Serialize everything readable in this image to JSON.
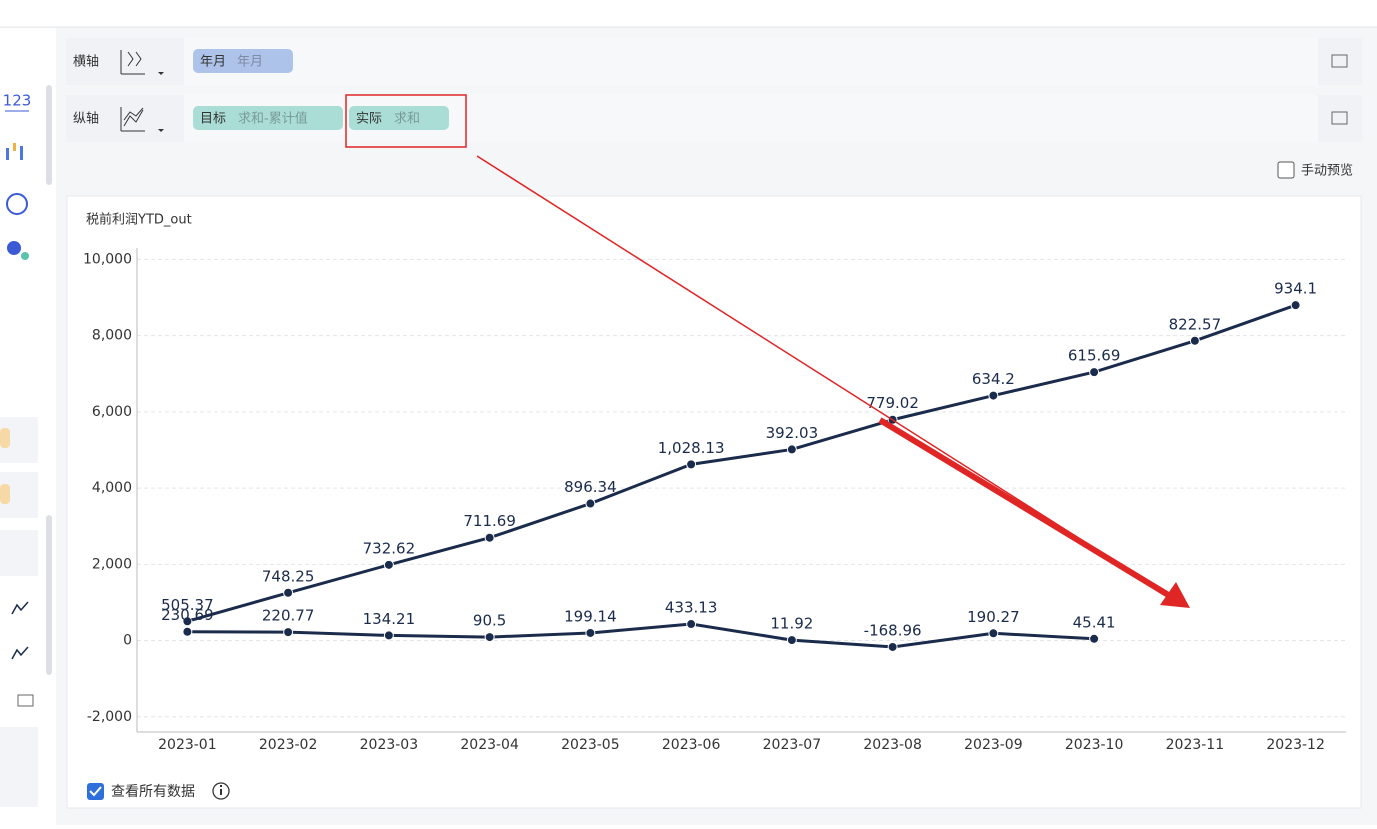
{
  "sidebar_label": "123",
  "toolbar": {
    "x_axis_label": "横轴",
    "x_field": "年月",
    "x_field_detail": "年月",
    "y_axis_label": "纵轴",
    "y_field_0_detail": "求和-累计值",
    "y_field_1_detail": "求和"
  },
  "manual_preview": "手动预览",
  "view_all_data": "查看所有数据",
  "chart_data": {
    "type": "line",
    "title": "税前利润YTD_out",
    "categories": [
      "2023-01",
      "2023-02",
      "2023-03",
      "2023-04",
      "2023-05",
      "2023-06",
      "2023-07",
      "2023-08",
      "2023-09",
      "2023-10",
      "2023-11",
      "2023-12"
    ],
    "series": [
      {
        "name": "目标",
        "color": "#1b2b4b",
        "cumulative": true,
        "values": [
          505.37,
          748.25,
          732.62,
          711.69,
          896.34,
          1028.13,
          392.03,
          779.02,
          634.2,
          615.69,
          822.57,
          934.1
        ],
        "value_labels": [
          "505.37",
          "748.25",
          "732.62",
          "711.69",
          "896.34",
          "1,028.13",
          "392.03",
          "779.02",
          "634.2",
          "615.69",
          "822.57",
          "934.1"
        ]
      },
      {
        "name": "实际",
        "color": "#1b2b4b",
        "values": [
          230.69,
          220.77,
          134.21,
          90.5,
          199.14,
          433.13,
          11.92,
          -168.96,
          190.27,
          45.41,
          null,
          null
        ]
      }
    ],
    "ylim": [
      -2400,
      10300
    ],
    "yticks": [
      {
        "value": -2000,
        "label": "-2,000"
      },
      0,
      {
        "value": 2000,
        "label": "2,000"
      },
      {
        "value": 4000,
        "label": "4,000"
      },
      {
        "value": 6000,
        "label": "6,000"
      },
      {
        "value": 8000,
        "label": "8,000"
      },
      {
        "value": 10000,
        "label": "10,000"
      }
    ],
    "grid": true
  }
}
